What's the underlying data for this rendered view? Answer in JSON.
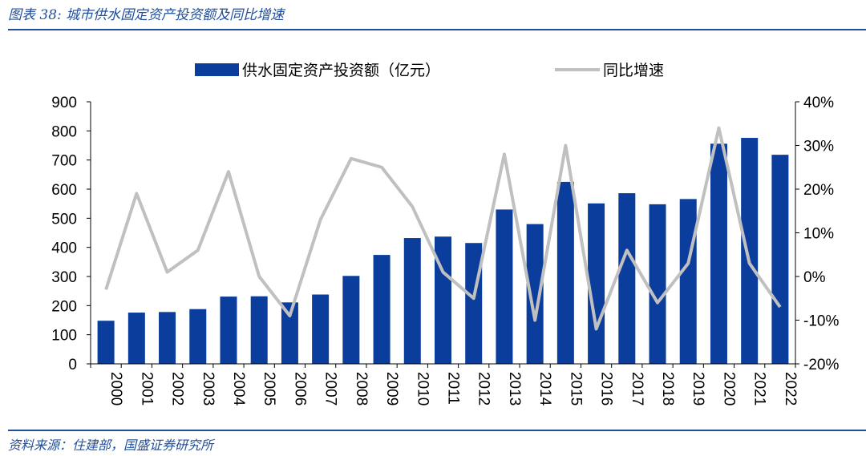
{
  "header": {
    "title": "图表 38:  城市供水固定资产投资额及同比增速"
  },
  "footer": {
    "source": "资料来源：住建部，国盛证券研究所"
  },
  "chart_data": {
    "type": "bar",
    "title": "",
    "categories": [
      "2000",
      "2001",
      "2002",
      "2003",
      "2004",
      "2005",
      "2006",
      "2007",
      "2008",
      "2009",
      "2010",
      "2011",
      "2012",
      "2013",
      "2014",
      "2015",
      "2016",
      "2017",
      "2018",
      "2019",
      "2020",
      "2021",
      "2022"
    ],
    "series": [
      {
        "name": "供水固定资产投资额（亿元）",
        "type": "bar",
        "axis": "left",
        "color": "#0a3d9c",
        "values": [
          148,
          176,
          178,
          188,
          231,
          232,
          211,
          238,
          302,
          374,
          432,
          437,
          415,
          530,
          480,
          625,
          551,
          586,
          548,
          566,
          756,
          776,
          718
        ]
      },
      {
        "name": "同比增速",
        "type": "line",
        "axis": "right",
        "color": "#c0c0c0",
        "values": [
          -3,
          19,
          1,
          6,
          24,
          0,
          -9,
          13,
          27,
          25,
          16,
          1,
          -5,
          28,
          -10,
          30,
          -12,
          6,
          -6,
          3,
          34,
          3,
          -7
        ]
      }
    ],
    "y_left": {
      "lim": [
        0,
        900
      ],
      "ticks": [
        "0",
        "100",
        "200",
        "300",
        "400",
        "500",
        "600",
        "700",
        "800",
        "900"
      ]
    },
    "y_right": {
      "lim": [
        -20,
        40
      ],
      "ticks": [
        "-20%",
        "-10%",
        "0%",
        "10%",
        "20%",
        "30%",
        "40%"
      ]
    },
    "legend": {
      "position": "top-center"
    },
    "grid": false
  }
}
